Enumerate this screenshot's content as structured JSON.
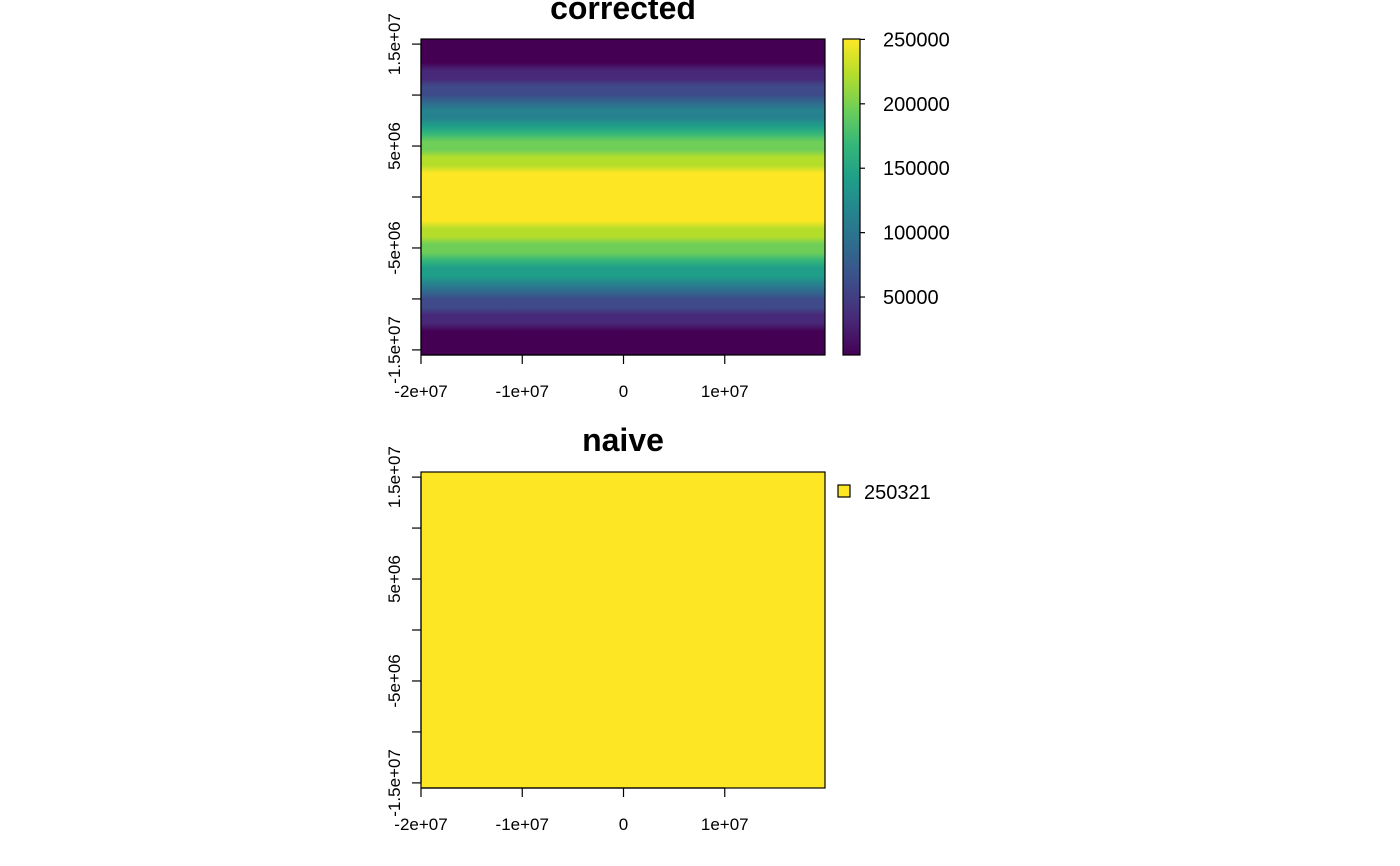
{
  "chart_data": [
    {
      "type": "heatmap",
      "title": "corrected",
      "x_ticks": [
        -20000000,
        -10000000,
        0,
        10000000
      ],
      "x_tick_labels": [
        "-2e+07",
        "-1e+07",
        "0",
        "1e+07"
      ],
      "y_ticks": [
        15000000,
        10000000,
        5000000,
        0,
        -5000000,
        -10000000,
        -15000000
      ],
      "y_tick_labels": [
        "1.5e+07",
        "",
        "5e+06",
        "",
        "-5e+06",
        "",
        "-1.5e+07"
      ],
      "xlim": [
        -20000000,
        19900000
      ],
      "ylim": [
        -15500000,
        15500000
      ],
      "value_range": [
        5000,
        250321
      ],
      "value_profile": "value peaks at y = 0 and falls off symmetrically toward the top and bottom edges, constant along x",
      "colorbar_ticks": [
        50000,
        100000,
        150000,
        200000,
        250000
      ],
      "colorbar_tick_labels": [
        "50000",
        "100000",
        "150000",
        "200000",
        "250000"
      ],
      "colormap": [
        "#440154",
        "#482878",
        "#3e4a89",
        "#31688e",
        "#26828e",
        "#1f9e89",
        "#35b779",
        "#6ece58",
        "#b5de2b",
        "#fde725"
      ]
    },
    {
      "type": "heatmap",
      "title": "naive",
      "x_ticks": [
        -20000000,
        -10000000,
        0,
        10000000
      ],
      "x_tick_labels": [
        "-2e+07",
        "-1e+07",
        "0",
        "1e+07"
      ],
      "y_ticks": [
        15000000,
        10000000,
        5000000,
        0,
        -5000000,
        -10000000,
        -15000000
      ],
      "y_tick_labels": [
        "1.5e+07",
        "",
        "5e+06",
        "",
        "-5e+06",
        "",
        "-1.5e+07"
      ],
      "xlim": [
        -20000000,
        19900000
      ],
      "ylim": [
        -15500000,
        15500000
      ],
      "values": [
        250321
      ],
      "fill_color": "#fde725",
      "legend": [
        {
          "label": "250321",
          "color": "#fde725"
        }
      ]
    }
  ]
}
